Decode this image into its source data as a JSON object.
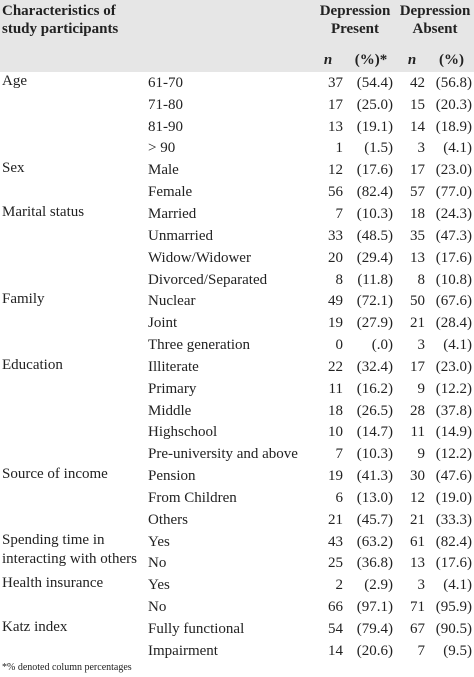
{
  "header": {
    "title": "Characteristics of study participants",
    "columns": [
      "Depression Present",
      "Depression Absent"
    ],
    "subcolumns": [
      "n",
      "(%)*",
      "n",
      "(%)"
    ]
  },
  "table": {
    "groups": [
      {
        "label": "Age",
        "rows": [
          [
            "61-70",
            "37",
            "(54.4)",
            "42",
            "(56.8)"
          ],
          [
            "71-80",
            "17",
            "(25.0)",
            "15",
            "(20.3)"
          ],
          [
            "81-90",
            "13",
            "(19.1)",
            "14",
            "(18.9)"
          ],
          [
            "> 90",
            "1",
            "(1.5)",
            "3",
            "(4.1)"
          ]
        ]
      },
      {
        "label": "Sex",
        "rows": [
          [
            "Male",
            "12",
            "(17.6)",
            "17",
            "(23.0)"
          ],
          [
            "Female",
            "56",
            "(82.4)",
            "57",
            "(77.0)"
          ]
        ]
      },
      {
        "label": "Marital status",
        "rows": [
          [
            "Married",
            "7",
            "(10.3)",
            "18",
            "(24.3)"
          ],
          [
            "Unmarried",
            "33",
            "(48.5)",
            "35",
            "(47.3)"
          ],
          [
            "Widow/Widower",
            "20",
            "(29.4)",
            "13",
            "(17.6)"
          ],
          [
            "Divorced/Separated",
            "8",
            "(11.8)",
            "8",
            "(10.8)"
          ]
        ]
      },
      {
        "label": "Family",
        "rows": [
          [
            "Nuclear",
            "49",
            "(72.1)",
            "50",
            "(67.6)"
          ],
          [
            "Joint",
            "19",
            "(27.9)",
            "21",
            "(28.4)"
          ],
          [
            "Three generation",
            "0",
            "(.0)",
            "3",
            "(4.1)"
          ]
        ]
      },
      {
        "label": "Education",
        "rows": [
          [
            "Illiterate",
            "22",
            "(32.4)",
            "17",
            "(23.0)"
          ],
          [
            "Primary",
            "11",
            "(16.2)",
            "9",
            "(12.2)"
          ],
          [
            "Middle",
            "18",
            "(26.5)",
            "28",
            "(37.8)"
          ],
          [
            "Highschool",
            "10",
            "(14.7)",
            "11",
            "(14.9)"
          ],
          [
            "Pre-university and above",
            "7",
            "(10.3)",
            "9",
            "(12.2)"
          ]
        ]
      },
      {
        "label": "Source of income",
        "rows": [
          [
            "Pension",
            "19",
            "(41.3)",
            "30",
            "(47.6)"
          ],
          [
            "From Children",
            "6",
            "(13.0)",
            "12",
            "(19.0)"
          ],
          [
            "Others",
            "21",
            "(45.7)",
            "21",
            "(33.3)"
          ]
        ]
      },
      {
        "label": "Spending time in interacting with others",
        "rows": [
          [
            "Yes",
            "43",
            "(63.2)",
            "61",
            "(82.4)"
          ],
          [
            "No",
            "25",
            "(36.8)",
            "13",
            "(17.6)"
          ]
        ]
      },
      {
        "label": "Health insurance",
        "rows": [
          [
            "Yes",
            "2",
            "(2.9)",
            "3",
            "(4.1)"
          ],
          [
            "No",
            "66",
            "(97.1)",
            "71",
            "(95.9)"
          ]
        ]
      },
      {
        "label": "Katz index",
        "rows": [
          [
            "Fully functional",
            "54",
            "(79.4)",
            "67",
            "(90.5)"
          ],
          [
            "Impairment",
            "14",
            "(20.6)",
            "7",
            "(9.5)"
          ]
        ]
      }
    ]
  },
  "footnote": "*% denoted column percentages"
}
